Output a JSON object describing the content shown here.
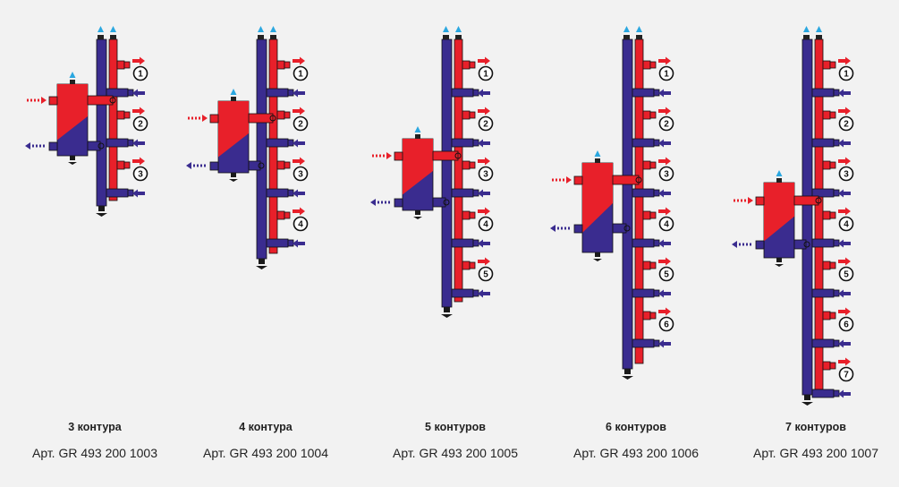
{
  "colors": {
    "hot": "#e8202a",
    "cold": "#3a2c8f",
    "vent": "#2aa7e0",
    "drain": "#1a1a1a",
    "text": "#222222"
  },
  "icons": {
    "vent": "air-vent-icon",
    "drain": "drain-valve-icon",
    "supply_arrow": "supply-arrow-icon",
    "return_arrow": "return-arrow-icon"
  },
  "manifolds": [
    {
      "circuits": 3,
      "count_label": "3 контура",
      "article": "Арт. GR 493 200 1003",
      "circuit_labels": [
        "1",
        "2",
        "3"
      ]
    },
    {
      "circuits": 4,
      "count_label": "4 контура",
      "article": "Арт. GR 493 200 1004",
      "circuit_labels": [
        "1",
        "2",
        "3",
        "4"
      ]
    },
    {
      "circuits": 5,
      "count_label": "5 контуров",
      "article": "Арт. GR 493 200 1005",
      "circuit_labels": [
        "1",
        "2",
        "3",
        "4",
        "5"
      ]
    },
    {
      "circuits": 6,
      "count_label": "6 контуров",
      "article": "Арт. GR 493 200 1006",
      "circuit_labels": [
        "1",
        "2",
        "3",
        "4",
        "5",
        "6"
      ]
    },
    {
      "circuits": 7,
      "count_label": "7 контуров",
      "article": "Арт. GR 493 200 1007",
      "circuit_labels": [
        "1",
        "2",
        "3",
        "4",
        "5",
        "6",
        "7"
      ]
    }
  ]
}
